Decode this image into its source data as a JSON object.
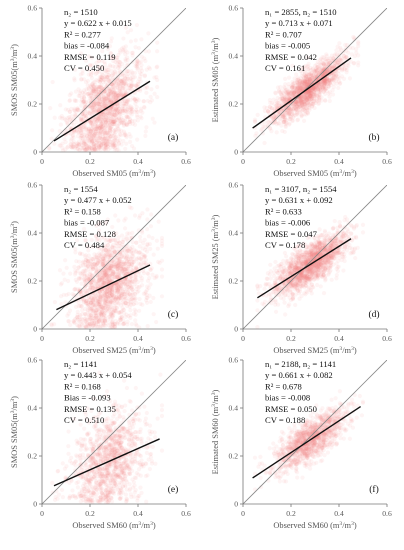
{
  "colors": {
    "point": "#f08080",
    "fit_line": "#111111",
    "identity_line": "#888888",
    "axis": "#777777"
  },
  "axis_unit_sup": "3",
  "chart_data": [
    {
      "type": "scatter",
      "panel_label": "(a)",
      "xlabel": "Observed SM05 (m",
      "xlabel_tail": "/m",
      "ylabel": "SMOS SM05(m",
      "ylabel_tail": "/m",
      "xlim": [
        0,
        0.6
      ],
      "ylim": [
        0,
        0.6
      ],
      "xticks": [
        "0",
        "0.2",
        "0.4",
        "0.6"
      ],
      "yticks": [
        "0",
        "0.2",
        "0.4",
        "0.6"
      ],
      "stats": [
        "n₂ = 1510",
        "y = 0.622 x + 0.015",
        "R² = 0.277",
        "bias = -0.084",
        "RMSE = 0.119",
        "CV = 0.450"
      ],
      "fit": {
        "slope": 0.622,
        "intercept": 0.015,
        "x_range": [
          0.05,
          0.45
        ]
      },
      "identity_line": true,
      "n_points": 1510,
      "cloud": {
        "x_center": 0.26,
        "x_sd": 0.08,
        "y_sd": 0.1,
        "x_range": [
          0.03,
          0.48
        ]
      }
    },
    {
      "type": "scatter",
      "panel_label": "(b)",
      "xlabel": "Observed SM05 (m",
      "xlabel_tail": "/m",
      "ylabel": "Estimated SM05 (m",
      "ylabel_tail": "/m",
      "xlim": [
        0,
        0.6
      ],
      "ylim": [
        0,
        0.6
      ],
      "xticks": [
        "0",
        "0.2",
        "0.4",
        "0.6"
      ],
      "yticks": [
        "0",
        "0.2",
        "0.4",
        "0.6"
      ],
      "stats": [
        "n₁ = 2855, n₂ = 1510",
        "y = 0.713 x + 0.071",
        "R² = 0.707",
        "bias = -0.005",
        "RMSE = 0.042",
        "CV = 0.161"
      ],
      "fit": {
        "slope": 0.713,
        "intercept": 0.071,
        "x_range": [
          0.04,
          0.45
        ]
      },
      "identity_line": true,
      "n_points": 1510,
      "cloud": {
        "x_center": 0.27,
        "x_sd": 0.08,
        "y_sd": 0.04,
        "x_range": [
          0.05,
          0.48
        ]
      }
    },
    {
      "type": "scatter",
      "panel_label": "(c)",
      "xlabel": "Observed SM25 (m",
      "xlabel_tail": "/m",
      "ylabel": "SMOS SM05(m",
      "ylabel_tail": "/m",
      "xlim": [
        0,
        0.6
      ],
      "ylim": [
        0,
        0.6
      ],
      "xticks": [
        "0",
        "0.2",
        "0.4",
        "0.6"
      ],
      "yticks": [
        "0",
        "0.2",
        "0.4",
        "0.6"
      ],
      "stats": [
        "n₂ = 1554",
        "y = 0.477 x + 0.052",
        "R² = 0.158",
        "bias = -0.087",
        "RMSE = 0.128",
        "CV = 0.484"
      ],
      "fit": {
        "slope": 0.477,
        "intercept": 0.052,
        "x_range": [
          0.06,
          0.45
        ]
      },
      "identity_line": true,
      "n_points": 1554,
      "cloud": {
        "x_center": 0.28,
        "x_sd": 0.08,
        "y_sd": 0.1,
        "x_range": [
          0.04,
          0.5
        ]
      }
    },
    {
      "type": "scatter",
      "panel_label": "(d)",
      "xlabel": "Observed SM25 (m",
      "xlabel_tail": "/m",
      "ylabel": "Estimated SM25 (m",
      "ylabel_tail": "/m",
      "xlim": [
        0,
        0.6
      ],
      "ylim": [
        0,
        0.6
      ],
      "xticks": [
        "0",
        "0.2",
        "0.4",
        "0.6"
      ],
      "yticks": [
        "0",
        "0.2",
        "0.4",
        "0.6"
      ],
      "stats": [
        "n₁ = 3107, n₂ = 1554",
        "y = 0.631 x + 0.092",
        "R² = 0.633",
        "bias = -0.006",
        "RMSE = 0.047",
        "CV = 0.178"
      ],
      "fit": {
        "slope": 0.631,
        "intercept": 0.092,
        "x_range": [
          0.06,
          0.45
        ]
      },
      "identity_line": true,
      "n_points": 1554,
      "cloud": {
        "x_center": 0.28,
        "x_sd": 0.08,
        "y_sd": 0.045,
        "x_range": [
          0.06,
          0.5
        ]
      }
    },
    {
      "type": "scatter",
      "panel_label": "(e)",
      "xlabel": "Observed SM60 (m",
      "xlabel_tail": "/m",
      "ylabel": "SMOS SM05(m",
      "ylabel_tail": "/m",
      "xlim": [
        0,
        0.6
      ],
      "ylim": [
        0,
        0.6
      ],
      "xticks": [
        "0",
        "0.2",
        "0.4",
        "0.6"
      ],
      "yticks": [
        "0",
        "0.2",
        "0.4",
        "0.6"
      ],
      "stats": [
        "n₂ = 1141",
        "y = 0.443 x + 0.054",
        "R² = 0.168",
        "Bias = -0.093",
        "RMSE = 0.135",
        "CV = 0.510"
      ],
      "fit": {
        "slope": 0.443,
        "intercept": 0.054,
        "x_range": [
          0.05,
          0.49
        ]
      },
      "identity_line": true,
      "n_points": 1141,
      "cloud": {
        "x_center": 0.28,
        "x_sd": 0.08,
        "y_sd": 0.1,
        "x_range": [
          0.04,
          0.5
        ]
      }
    },
    {
      "type": "scatter",
      "panel_label": "(f)",
      "xlabel": "Observed SM60 (m",
      "xlabel_tail": "/m",
      "ylabel": "Estimated SM60 (m",
      "ylabel_tail": "/m",
      "xlim": [
        0,
        0.6
      ],
      "ylim": [
        0,
        0.6
      ],
      "xticks": [
        "0",
        "0.2",
        "0.4",
        "0.6"
      ],
      "yticks": [
        "0",
        "0.2",
        "0.4",
        "0.6"
      ],
      "stats": [
        "n₁ = 2188, n₂ = 1141",
        "y = 0.661 x + 0.082",
        "R² = 0.678",
        "bias = -0.008",
        "RMSE = 0.050",
        "CV = 0.188"
      ],
      "fit": {
        "slope": 0.661,
        "intercept": 0.082,
        "x_range": [
          0.04,
          0.49
        ]
      },
      "identity_line": true,
      "n_points": 1141,
      "cloud": {
        "x_center": 0.28,
        "x_sd": 0.08,
        "y_sd": 0.045,
        "x_range": [
          0.05,
          0.5
        ]
      }
    }
  ]
}
